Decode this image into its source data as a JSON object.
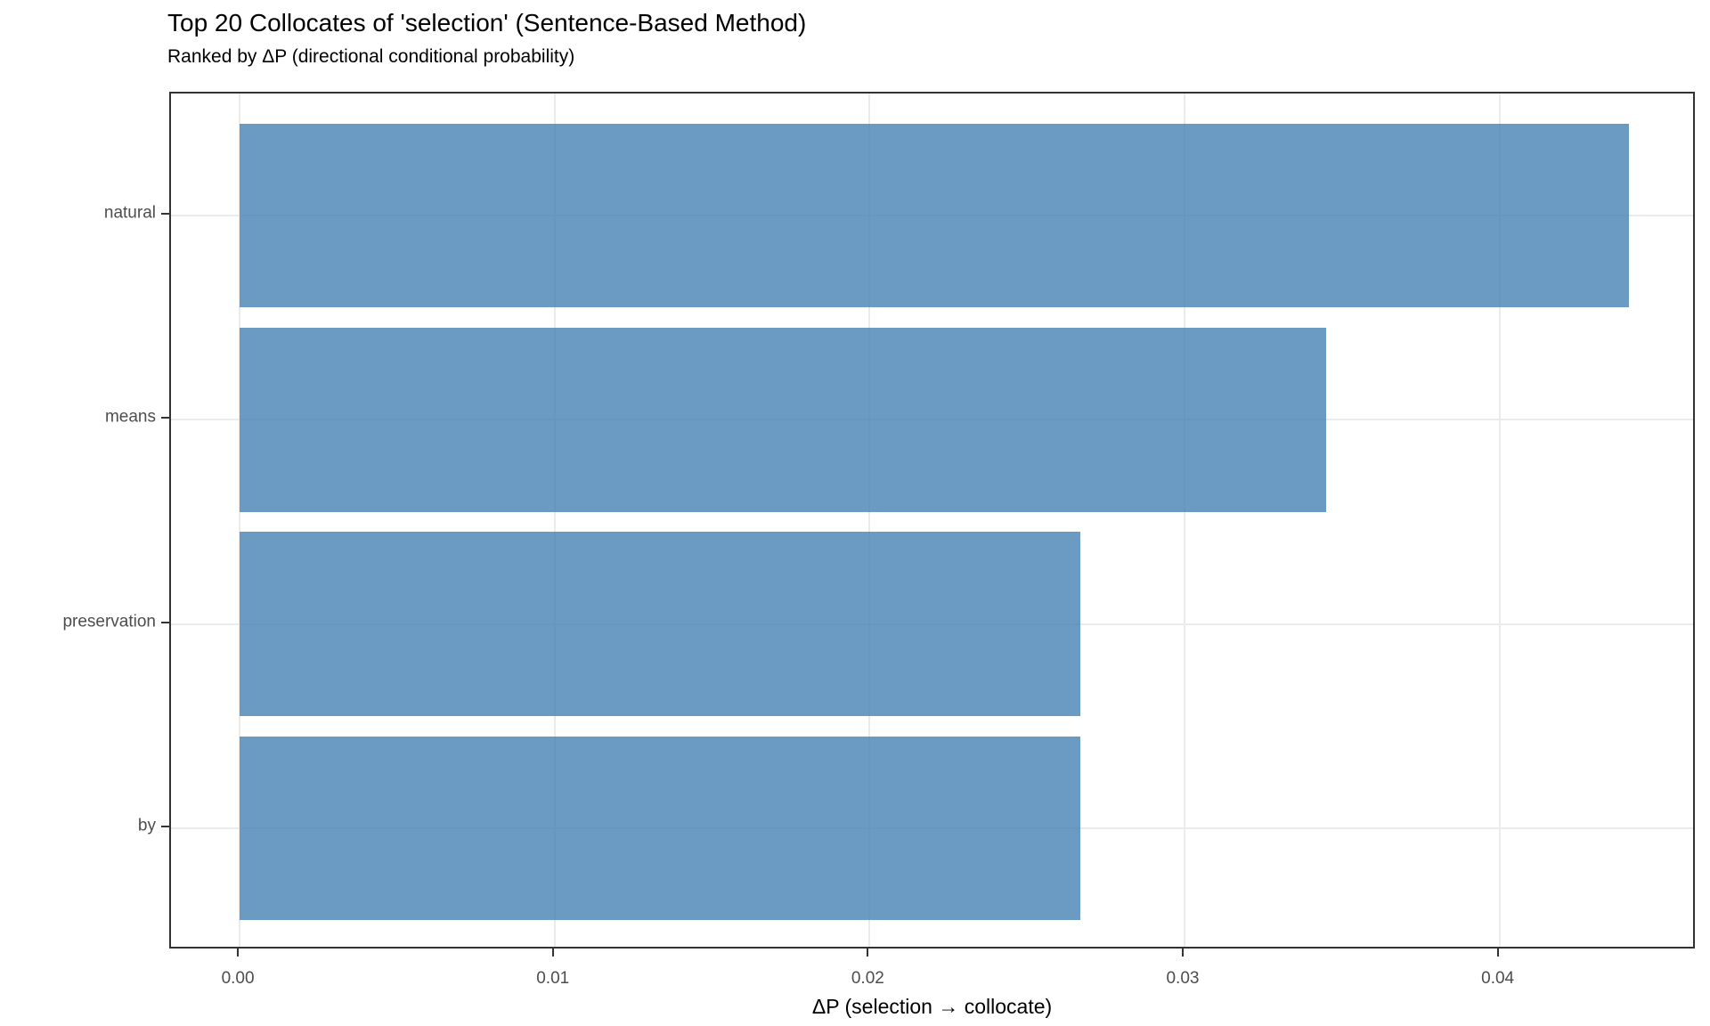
{
  "chart": {
    "title": "Top 20 Collocates of 'selection' (Sentence-Based Method)",
    "subtitle": "Ranked by ΔP (directional conditional probability)",
    "xlabel": "ΔP (selection → collocate)"
  },
  "chart_data": {
    "type": "bar",
    "orientation": "horizontal",
    "title": "Top 20 Collocates of 'selection' (Sentence-Based Method)",
    "subtitle": "Ranked by ΔP (directional conditional probability)",
    "xlabel": "ΔP (selection → collocate)",
    "ylabel": "",
    "categories": [
      "natural",
      "means",
      "preservation",
      "by"
    ],
    "values": [
      0.0441,
      0.0345,
      0.0267,
      0.0267
    ],
    "x_ticks": [
      0,
      0.01,
      0.02,
      0.03,
      0.04
    ],
    "x_tick_labels": [
      "0.00",
      "0.01",
      "0.02",
      "0.03",
      "0.04"
    ],
    "xlim": [
      -0.00218,
      0.04626
    ],
    "grid": "major-only",
    "legend": "none",
    "bar_fill": "#4682B4",
    "bar_alpha": 0.8,
    "grid_color": "#ebebeb",
    "panel_border_color": "#333333",
    "tick_color": "#333333",
    "tick_text_color": "#4d4d4d",
    "title_color": "#000000",
    "background_color": "#ffffff"
  }
}
